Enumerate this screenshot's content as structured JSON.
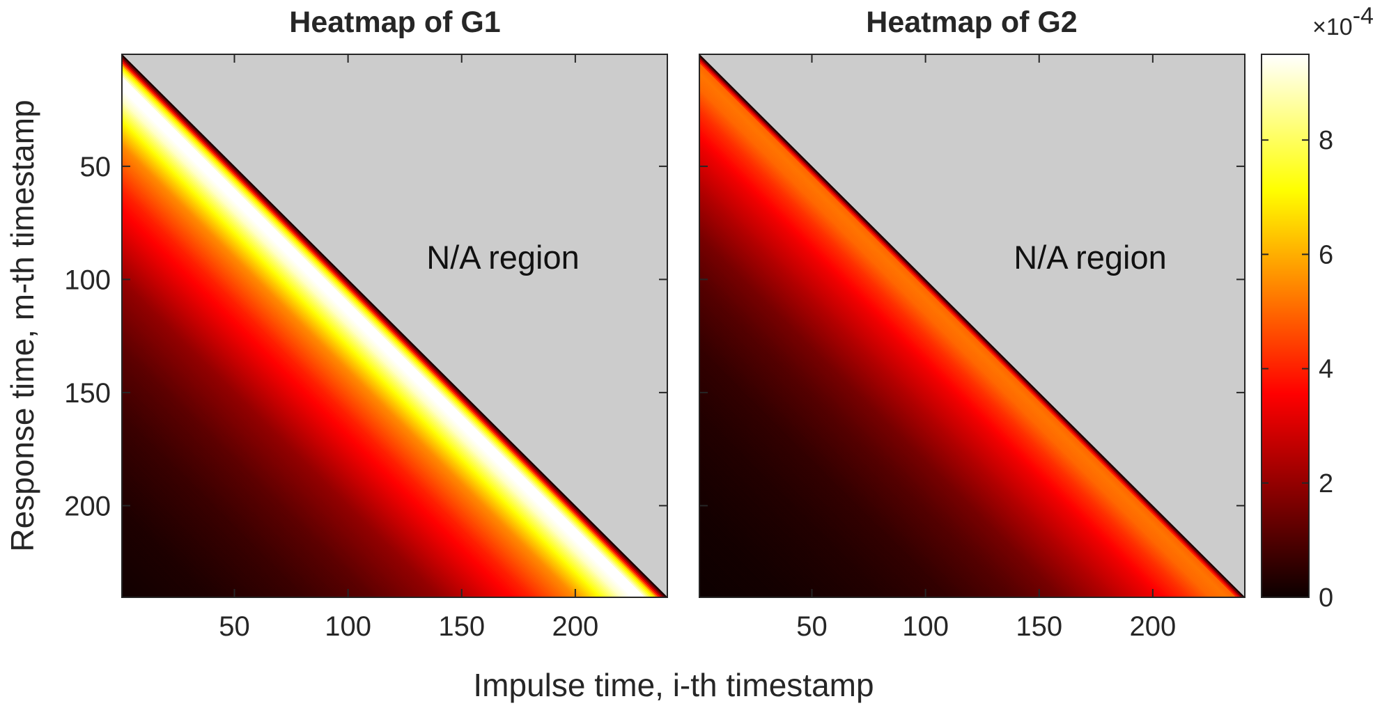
{
  "chart_data": [
    {
      "type": "heatmap",
      "title": "Heatmap of G1",
      "xlabel": "Impulse time, i-th timestamp",
      "ylabel": "Response time, m-th timestamp",
      "xlim": [
        1,
        240
      ],
      "ylim": [
        240,
        1
      ],
      "xticks": [
        50,
        100,
        150,
        200
      ],
      "yticks": [
        50,
        100,
        150,
        200
      ],
      "na_fill_color": "#cccccc",
      "annotation": "N/A region",
      "value_profile": {
        "description_units": "value vs lag (m - i) in timestamps, x 1e-4",
        "lag": [
          0,
          2,
          5,
          10,
          15,
          20,
          30,
          40,
          60,
          80,
          100,
          130,
          160,
          200,
          239
        ],
        "value": [
          0.2,
          2.5,
          6.5,
          9.5,
          9.5,
          9.0,
          7.0,
          5.5,
          4.0,
          3.0,
          2.0,
          1.2,
          0.7,
          0.3,
          0.1
        ]
      }
    },
    {
      "type": "heatmap",
      "title": "Heatmap of G2",
      "xlabel": "Impulse time, i-th timestamp",
      "xlim": [
        1,
        240
      ],
      "ylim": [
        240,
        1
      ],
      "xticks": [
        50,
        100,
        150,
        200
      ],
      "yticks": [
        50,
        100,
        150,
        200
      ],
      "na_fill_color": "#cccccc",
      "annotation": "N/A region",
      "value_profile": {
        "description_units": "value vs lag (m - i) in timestamps, x 1e-4",
        "lag": [
          0,
          2,
          4,
          8,
          15,
          25,
          40,
          60,
          80,
          100,
          130,
          160,
          200,
          239
        ],
        "value": [
          0.2,
          3.0,
          5.0,
          5.2,
          5.0,
          4.2,
          3.3,
          2.4,
          1.6,
          1.1,
          0.6,
          0.35,
          0.15,
          0.05
        ]
      }
    }
  ],
  "colorbar": {
    "colormap": "hot",
    "range": [
      0,
      9.5
    ],
    "ticks": [
      "0",
      "2",
      "4",
      "6",
      "8"
    ],
    "tick_values": [
      0,
      2,
      4,
      6,
      8
    ],
    "exponent_label": "×10",
    "exponent": "-4"
  },
  "xlabel_shared": "Impulse time, i-th timestamp"
}
